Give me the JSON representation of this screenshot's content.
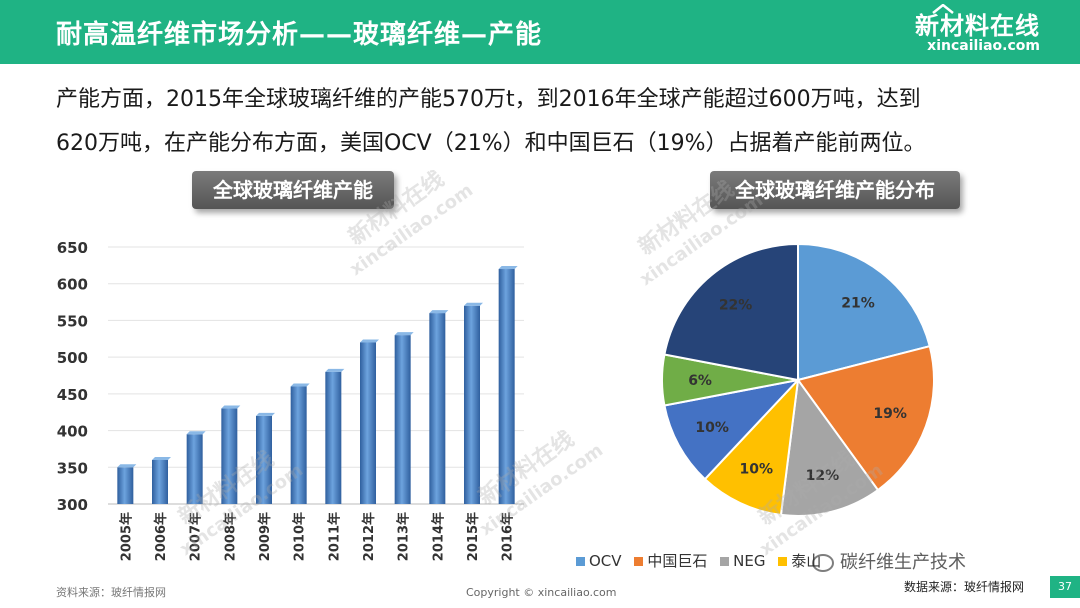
{
  "header": {
    "title": "耐高温纤维市场分析——玻璃纤维—产能",
    "logo_cn": "新材料在线",
    "logo_en": "xincailiao.com"
  },
  "intro": {
    "line1": "产能方面，2015年全球玻璃纤维的产能570万t，到2016年全球产能超过600万吨，达到",
    "line2": "620万吨，在产能分布方面，美国OCV（21%）和中国巨石（19%）占据着产能前两位。"
  },
  "watermark": {
    "cn": "新材料在线",
    "en": "xincailiao.com"
  },
  "chart_data": [
    {
      "type": "bar",
      "title": "全球玻璃纤维产能",
      "categories": [
        "2005年",
        "2006年",
        "2007年",
        "2008年",
        "2009年",
        "2010年",
        "2011年",
        "2012年",
        "2013年",
        "2014年",
        "2015年",
        "2016年"
      ],
      "values": [
        350,
        360,
        395,
        430,
        420,
        460,
        480,
        520,
        530,
        560,
        570,
        620
      ],
      "ylim": [
        300,
        650
      ],
      "yticks": [
        300,
        350,
        400,
        450,
        500,
        550,
        600,
        650
      ],
      "grid": true,
      "color": "#4a86c8"
    },
    {
      "type": "pie",
      "title": "全球玻璃纤维产能分布",
      "slices": [
        {
          "label": "OCV",
          "value": 21,
          "text": "21%",
          "color": "#5b9bd5"
        },
        {
          "label": "中国巨石",
          "value": 19,
          "text": "19%",
          "color": "#ed7d31"
        },
        {
          "label": "NEG",
          "value": 12,
          "text": "12%",
          "color": "#a5a5a5"
        },
        {
          "label": "泰山",
          "value": 10,
          "text": "10%",
          "color": "#ffc000"
        },
        {
          "label": "",
          "value": 10,
          "text": "10%",
          "color": "#4472c4"
        },
        {
          "label": "",
          "value": 6,
          "text": "6%",
          "color": "#70ad47"
        },
        {
          "label": "",
          "value": 22,
          "text": "22%",
          "color": "#264478"
        }
      ],
      "legend": "bottom"
    }
  ],
  "legend_partial": [
    "OCV",
    "中国巨石",
    "NEG",
    "泰山"
  ],
  "wechat_overlay": "碳纤维生产技术",
  "footer": {
    "source_left": "资料来源：玻纤情报网",
    "copyright": "Copyright © xincailiao.com",
    "source_right": "数据来源：玻纤情报网",
    "page": "37"
  }
}
